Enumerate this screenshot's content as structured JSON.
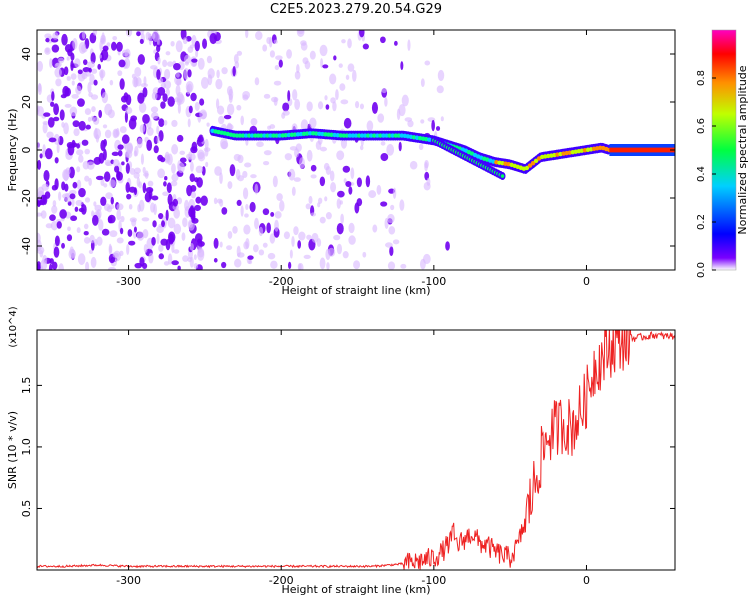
{
  "title": "C2E5.2023.279.20.54.G29",
  "chart_data": [
    {
      "type": "heatmap",
      "title": "C2E5.2023.279.20.54.G29",
      "xlabel": "Height of straight line (km)",
      "ylabel": "Frequency (Hz)",
      "xlim": [
        -360,
        58
      ],
      "ylim": [
        -50,
        50
      ],
      "x_ticks": [
        "-300",
        "-200",
        "-100",
        "0"
      ],
      "y_ticks": [
        "40",
        "20",
        "0",
        "-20",
        "-40"
      ],
      "colorbar": {
        "label": "Normalized spectral amplitude",
        "range": [
          0,
          1
        ],
        "ticks": [
          "0.0",
          "0.2",
          "0.4",
          "0.6",
          "0.8"
        ],
        "colors": [
          "#ffffff",
          "#7a00ff",
          "#0000ff",
          "#00d0ff",
          "#00ff40",
          "#c0ff00",
          "#ff9000",
          "#ff0000",
          "#ff00c0"
        ]
      },
      "signal_trace": {
        "x": [
          -245,
          -230,
          -200,
          -180,
          -160,
          -140,
          -120,
          -100,
          -80,
          -70,
          -60,
          -50,
          -40,
          -30,
          -20,
          -10,
          0,
          10,
          15,
          58
        ],
        "y": [
          8,
          6,
          6,
          7,
          6,
          6,
          6,
          4,
          0,
          -3,
          -5,
          -6,
          -8,
          -3,
          -2,
          -1,
          0,
          1,
          0,
          0
        ]
      },
      "noise_region_x": [
        -360,
        -150
      ]
    },
    {
      "type": "line",
      "xlabel": "Height of straight line (km)",
      "ylabel": "SNR (10 * v/v)",
      "y_multiplier": "(x10^4)",
      "xlim": [
        -360,
        58
      ],
      "ylim": [
        0,
        1.95
      ],
      "x_ticks": [
        "-300",
        "-200",
        "-100",
        "0"
      ],
      "y_ticks": [
        "0.5",
        "1.0",
        "1.5"
      ],
      "series": [
        {
          "color": "#ee2222",
          "x": [
            -360,
            -340,
            -320,
            -300,
            -280,
            -260,
            -240,
            -220,
            -200,
            -180,
            -160,
            -140,
            -130,
            -120,
            -110,
            -100,
            -95,
            -90,
            -87,
            -85,
            -80,
            -75,
            -70,
            -65,
            -60,
            -55,
            -50,
            -45,
            -40,
            -35,
            -30,
            -25,
            -20,
            -15,
            -10,
            -5,
            0,
            5,
            10,
            15,
            20,
            25,
            30,
            35,
            40,
            45,
            50,
            58
          ],
          "y": [
            0.03,
            0.03,
            0.04,
            0.03,
            0.03,
            0.03,
            0.03,
            0.03,
            0.03,
            0.03,
            0.03,
            0.03,
            0.04,
            0.05,
            0.07,
            0.1,
            0.14,
            0.22,
            0.3,
            0.2,
            0.25,
            0.3,
            0.22,
            0.2,
            0.15,
            0.12,
            0.1,
            0.2,
            0.4,
            0.65,
            0.9,
            1.1,
            1.15,
            1.2,
            1.15,
            1.25,
            1.4,
            1.65,
            1.72,
            1.8,
            1.85,
            1.87,
            1.88,
            1.89,
            1.9,
            1.91,
            1.9,
            1.9
          ]
        }
      ]
    }
  ]
}
